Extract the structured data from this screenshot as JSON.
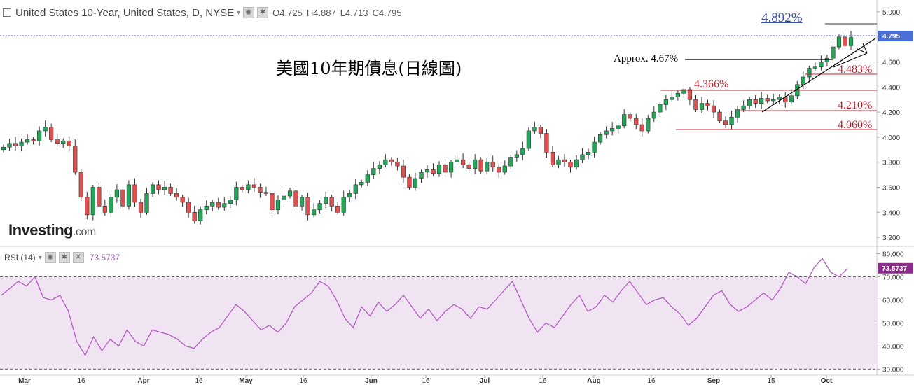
{
  "header": {
    "symbol": "United States 10-Year, United States, D, NYSE",
    "open": "O4.725",
    "high": "H4.887",
    "low": "L4.713",
    "close": "C4.795"
  },
  "rsi_header": {
    "label": "RSI (14)",
    "value": "73.5737"
  },
  "logo": {
    "text": "Investing",
    "suffix": ".com"
  },
  "overlay_title": "美國10年期債息(日線圖)",
  "annotations": {
    "level_4892": "4.892%",
    "approx": "Approx. 4.67%",
    "level_4483": "4.483%",
    "level_4366": "4.366%",
    "level_4210": "4.210%",
    "level_4060": "4.060%"
  },
  "colors": {
    "up": "#26a65b",
    "down": "#e0504f",
    "rsi_line": "#b05cc0",
    "rsi_band": "#f1e4f2",
    "annotation_red": "#c0202e",
    "annotation_blue": "#3a4fb0",
    "price_tag": "#4a6fd6",
    "rsi_tag": "#8e2c8e"
  },
  "chart_data": [
    {
      "type": "candlestick",
      "title": "United States 10-Year, United States, D, NYSE",
      "ylim": [
        3.15,
        5.05
      ],
      "y_ticks": [
        "3.200",
        "3.400",
        "3.600",
        "3.800",
        "4.000",
        "4.200",
        "4.400",
        "4.600",
        "4.800",
        "5.000"
      ],
      "x_ticks": [
        "Mar",
        "16",
        "Apr",
        "16",
        "May",
        "16",
        "Jun",
        "16",
        "Jul",
        "16",
        "Aug",
        "16",
        "Sep",
        "15",
        "Oct"
      ],
      "last_price_label": "4.795",
      "closes": [
        3.92,
        3.95,
        3.93,
        3.96,
        3.98,
        3.97,
        4.05,
        4.08,
        3.98,
        3.95,
        3.97,
        3.93,
        3.72,
        3.52,
        3.38,
        3.6,
        3.45,
        3.4,
        3.52,
        3.58,
        3.45,
        3.62,
        3.48,
        3.4,
        3.55,
        3.62,
        3.58,
        3.6,
        3.55,
        3.52,
        3.48,
        3.4,
        3.33,
        3.42,
        3.45,
        3.48,
        3.44,
        3.47,
        3.5,
        3.6,
        3.58,
        3.62,
        3.6,
        3.56,
        3.55,
        3.42,
        3.5,
        3.53,
        3.57,
        3.45,
        3.52,
        3.38,
        3.42,
        3.47,
        3.52,
        3.45,
        3.4,
        3.52,
        3.55,
        3.62,
        3.64,
        3.7,
        3.75,
        3.78,
        3.82,
        3.8,
        3.77,
        3.68,
        3.6,
        3.67,
        3.72,
        3.74,
        3.71,
        3.78,
        3.72,
        3.8,
        3.82,
        3.78,
        3.75,
        3.82,
        3.73,
        3.8,
        3.76,
        3.72,
        3.77,
        3.84,
        3.86,
        3.91,
        4.05,
        4.08,
        4.03,
        3.88,
        3.78,
        3.82,
        3.8,
        3.76,
        3.82,
        3.86,
        3.88,
        3.96,
        4.02,
        4.05,
        4.07,
        4.09,
        4.18,
        4.15,
        4.1,
        4.05,
        4.15,
        4.2,
        4.26,
        4.3,
        4.32,
        4.35,
        4.38,
        4.3,
        4.22,
        4.27,
        4.25,
        4.2,
        4.13,
        4.1,
        4.16,
        4.22,
        4.25,
        4.3,
        4.27,
        4.31,
        4.29,
        4.3,
        4.32,
        4.28,
        4.33,
        4.42,
        4.48,
        4.55,
        4.56,
        4.6,
        4.63,
        4.72,
        4.8,
        4.73,
        4.795
      ],
      "segments": [
        {
          "dates": "Mar–Oct",
          "note": "daily OHLC"
        }
      ]
    },
    {
      "type": "line",
      "title": "RSI (14)",
      "ylim": [
        28,
        82
      ],
      "y_ticks": [
        "30.000",
        "40.000",
        "50.000",
        "60.000",
        "70.000",
        "80.000"
      ],
      "bands": [
        30,
        70
      ],
      "last_value_label": "73.5737",
      "values": [
        62,
        65,
        68,
        66,
        70,
        61,
        60,
        62,
        55,
        42,
        36,
        44,
        38,
        43,
        40,
        47,
        42,
        40,
        47,
        46,
        45,
        43,
        40,
        39,
        43,
        46,
        48,
        53,
        58,
        55,
        51,
        47,
        49,
        46,
        50,
        57,
        60,
        63,
        68,
        66,
        60,
        52,
        48,
        57,
        53,
        59,
        55,
        58,
        62,
        57,
        52,
        56,
        51,
        55,
        58,
        56,
        52,
        57,
        56,
        60,
        64,
        68,
        60,
        52,
        46,
        50,
        48,
        53,
        58,
        62,
        55,
        57,
        62,
        59,
        64,
        68,
        63,
        58,
        60,
        61,
        57,
        54,
        49,
        52,
        57,
        62,
        64,
        58,
        55,
        57,
        60,
        63,
        60,
        65,
        72,
        70,
        67,
        74,
        78,
        72,
        70,
        73.57
      ]
    }
  ]
}
